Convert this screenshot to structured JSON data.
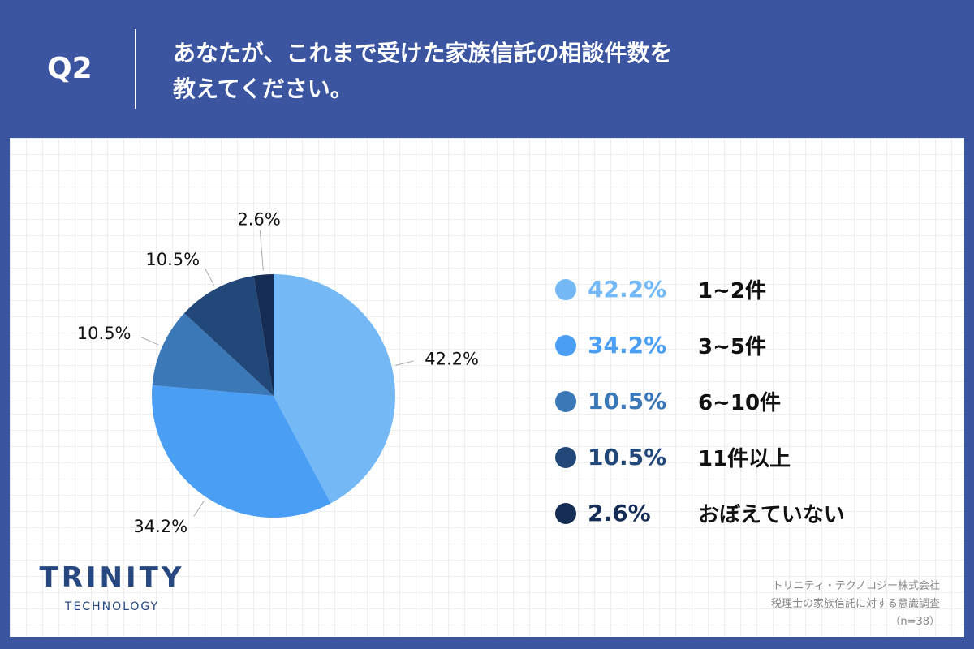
{
  "header": {
    "question_no": "Q2",
    "title_line1": "あなたが、これまで受けた家族信託の相談件数を",
    "title_line2": "教えてください。"
  },
  "chart_data": {
    "type": "pie",
    "categories": [
      "1~2件",
      "3~5件",
      "6~10件",
      "11件以上",
      "おぼえていない"
    ],
    "values": [
      42.2,
      34.2,
      10.5,
      10.5,
      2.6
    ],
    "labels": [
      "42.2%",
      "34.2%",
      "10.5%",
      "10.5%",
      "2.6%"
    ],
    "colors": [
      "#74b9f5",
      "#4a9ff5",
      "#3a78b8",
      "#22487a",
      "#152d55"
    ],
    "legend_placement": "right"
  },
  "logo": {
    "name": "TRINITY",
    "sub": "TECHNOLOGY"
  },
  "source": {
    "line1": "トリニティ・テクノロジー株式会社",
    "line2": "税理士の家族信託に対する意識調査",
    "line3": "（n=38）"
  }
}
